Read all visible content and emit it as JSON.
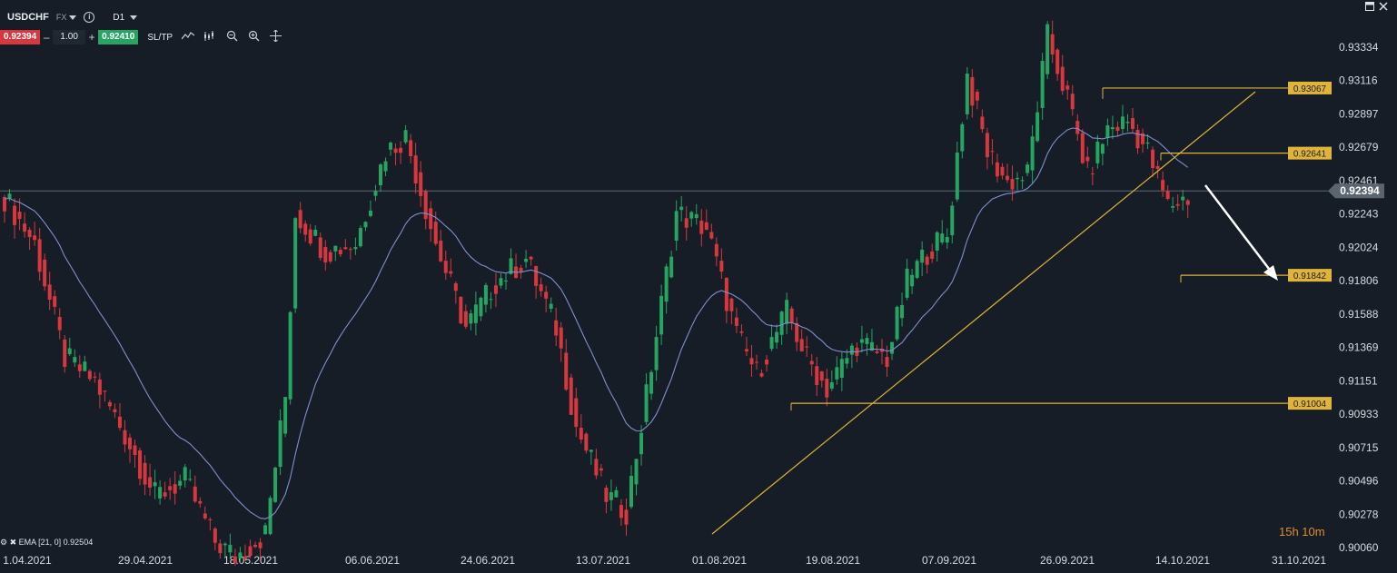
{
  "header": {
    "symbol": "USDCHF",
    "market": "FX",
    "timeframe": "D1",
    "bid": "0.92394",
    "quantity": "1.00",
    "ask": "0.92410",
    "sltp_label": "SL/TP",
    "minus": "–",
    "plus": "+"
  },
  "window": {
    "minimize_icon": "window-icon",
    "close_icon": "close-icon"
  },
  "indicator": {
    "label": "EMA [21, 0] 0.92504",
    "value": 0.92504,
    "period": 21
  },
  "timer": "15h 10m",
  "price_axis": {
    "labels": [
      "0.93334",
      "0.93116",
      "0.92897",
      "0.92679",
      "0.92461",
      "0.92243",
      "0.92024",
      "0.91806",
      "0.91588",
      "0.91369",
      "0.91151",
      "0.90933",
      "0.90715",
      "0.90496",
      "0.90278",
      "0.90060"
    ],
    "current_price": "0.92394"
  },
  "time_axis": {
    "labels": [
      "1.04.2021",
      "29.04.2021",
      "18.05.2021",
      "06.06.2021",
      "24.06.2021",
      "13.07.2021",
      "01.08.2021",
      "19.08.2021",
      "07.09.2021",
      "26.09.2021",
      "14.10.2021",
      "31.10.2021"
    ]
  },
  "levels": [
    {
      "price": 0.93067,
      "label": "0.93067"
    },
    {
      "price": 0.92641,
      "label": "0.92641"
    },
    {
      "price": 0.91842,
      "label": "0.91842"
    },
    {
      "price": 0.91004,
      "label": "0.91004"
    }
  ],
  "colors": {
    "background": "#161d26",
    "bull": "#25a561",
    "bear": "#d7383f",
    "ema": "#7f8fd0",
    "annotation": "#e0b43a",
    "axis_text": "#d6dbe1"
  }
}
